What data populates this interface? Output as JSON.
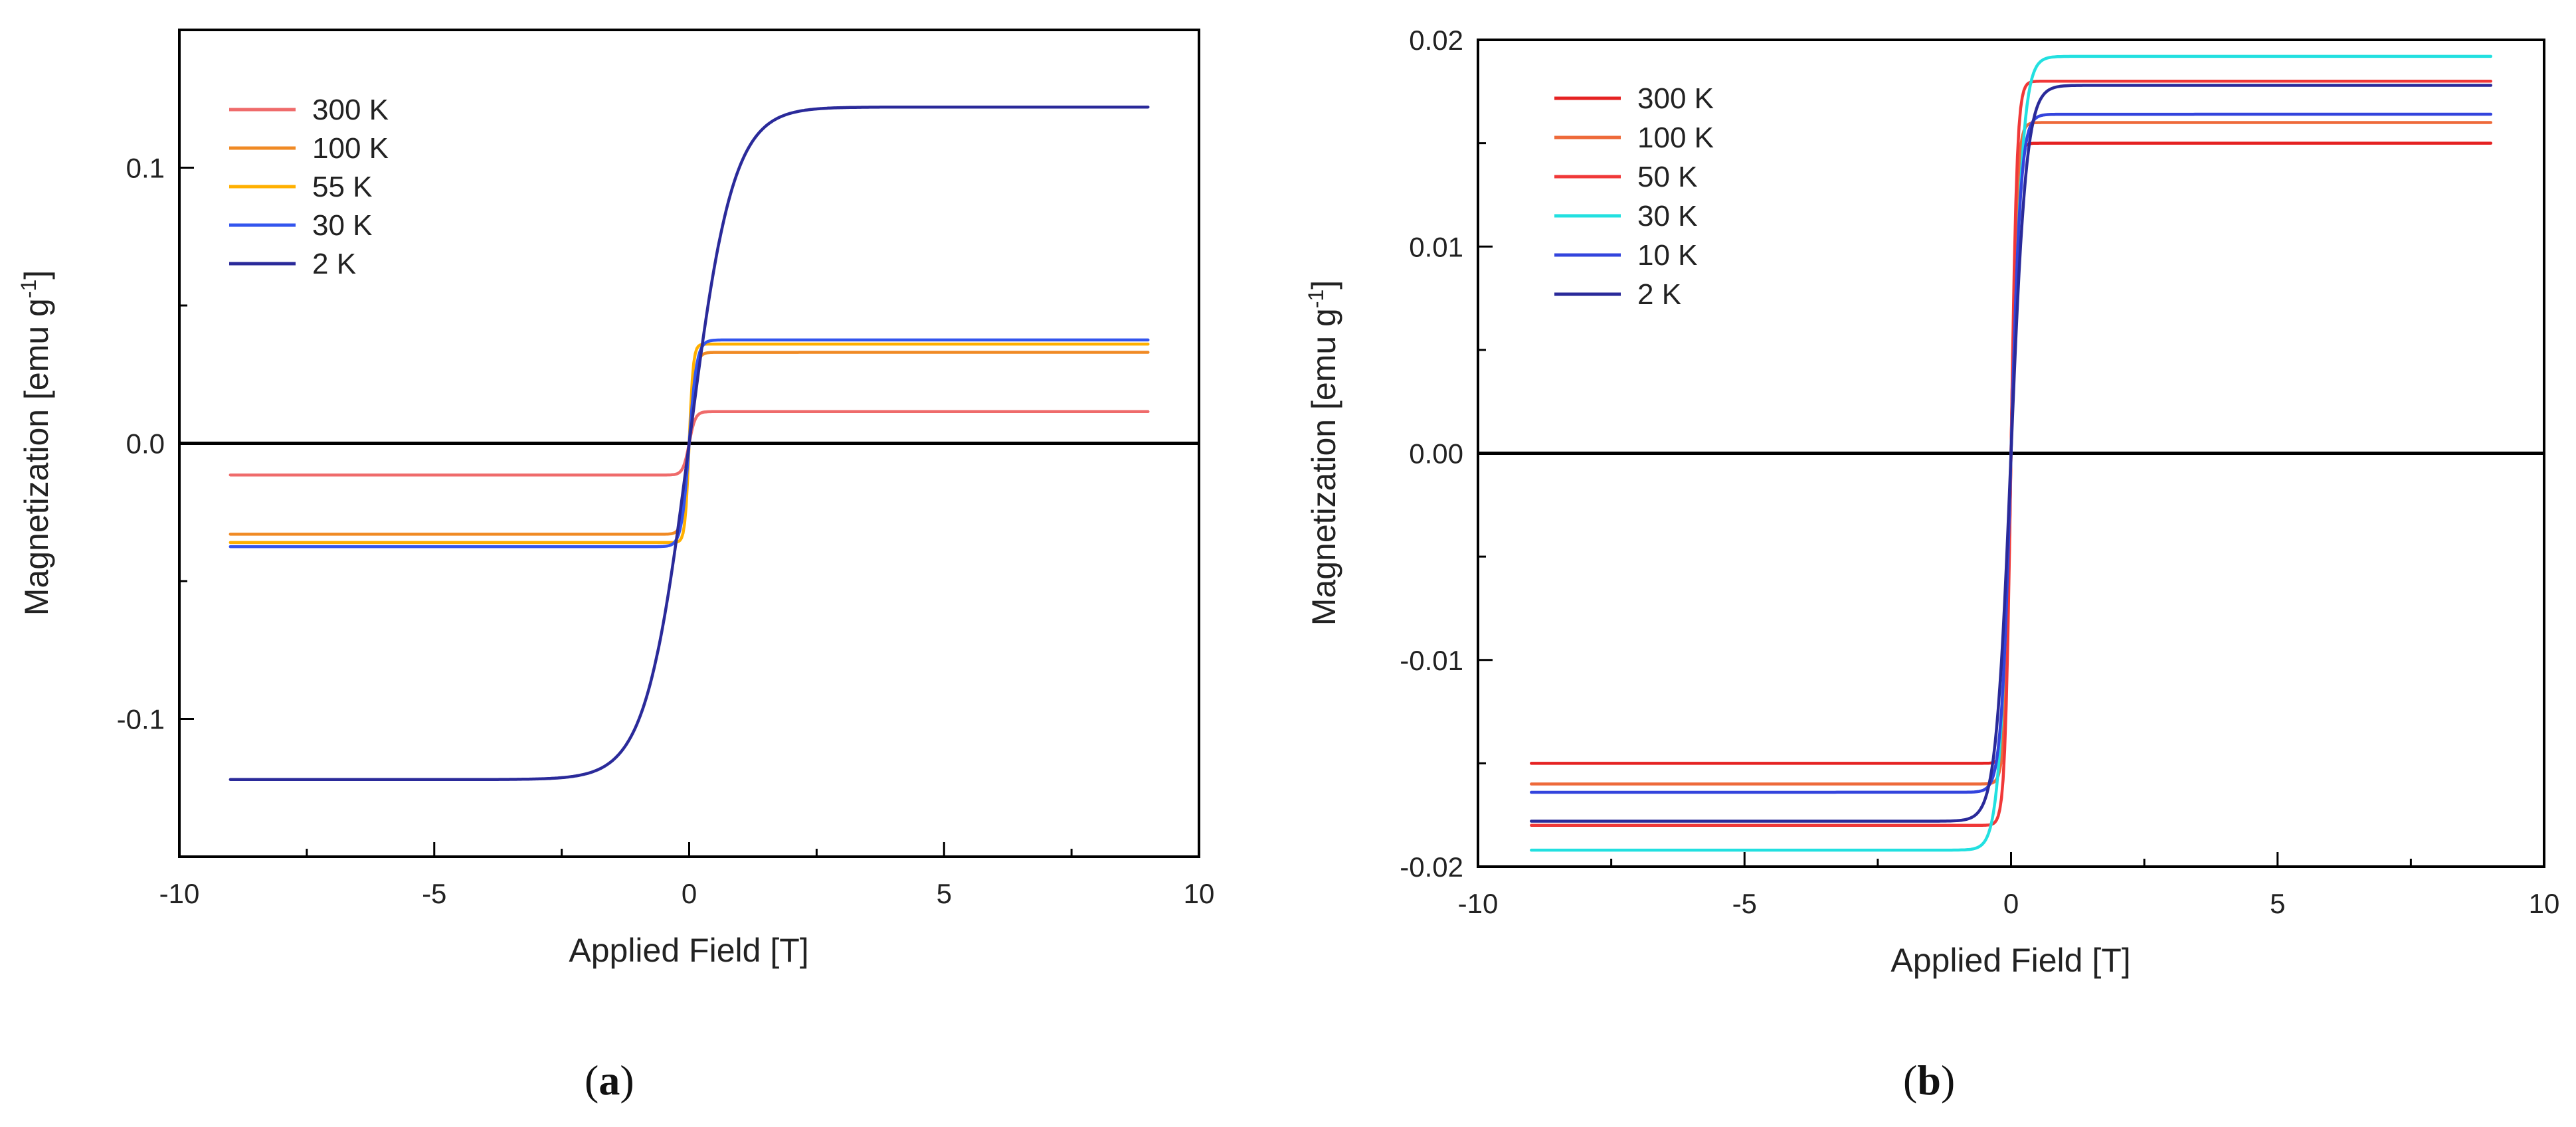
{
  "chart_data": [
    {
      "type": "line",
      "caption": "a",
      "xlabel": "Applied Field [T]",
      "ylabel": "Magnetization [emu g",
      "ylabel_sup": "-1",
      "ylabel_end": "]",
      "xlim": [
        -10,
        10
      ],
      "ylim": [
        -0.15,
        0.15
      ],
      "xticks": [
        -10,
        -5,
        0,
        5,
        10
      ],
      "xtick_labels": [
        "-10",
        "-5",
        "0",
        "5",
        "10"
      ],
      "yticks": [
        -0.1,
        0.0,
        0.1
      ],
      "ytick_labels": [
        "-0.1",
        "0.0",
        "0.1"
      ],
      "legend_position": "top-left",
      "series": [
        {
          "name": "300 K",
          "color": "#ef6b6b",
          "ms": 0.0115,
          "h0": 0.12
        },
        {
          "name": "100 K",
          "color": "#f08a24",
          "ms": 0.033,
          "h0": 0.12
        },
        {
          "name": "55 K",
          "color": "#ffb000",
          "ms": 0.036,
          "h0": 0.08
        },
        {
          "name": "30 K",
          "color": "#3355ee",
          "ms": 0.0375,
          "h0": 0.15
        },
        {
          "name": "2 K",
          "color": "#2a2a9a",
          "ms": 0.122,
          "h0": 0.85
        }
      ]
    },
    {
      "type": "line",
      "caption": "b",
      "xlabel": "Applied Field [T]",
      "ylabel": "Magnetization [emu g",
      "ylabel_sup": "-1",
      "ylabel_end": "]",
      "xlim": [
        -10,
        10
      ],
      "ylim": [
        -0.02,
        0.02
      ],
      "xticks": [
        -10,
        -5,
        0,
        5,
        10
      ],
      "xtick_labels": [
        "-10",
        "-5",
        "0",
        "5",
        "10"
      ],
      "yticks": [
        -0.02,
        -0.01,
        0.0,
        0.01,
        0.02
      ],
      "ytick_labels": [
        "-0.02",
        "-0.01",
        "0.00",
        "0.01",
        "0.02"
      ],
      "legend_position": "top-left",
      "series": [
        {
          "name": "300 K",
          "color": "#e52222",
          "ms": 0.015,
          "h0": 0.1
        },
        {
          "name": "100 K",
          "color": "#ee6a3a",
          "ms": 0.016,
          "h0": 0.11
        },
        {
          "name": "50 K",
          "color": "#f03838",
          "ms": 0.018,
          "h0": 0.11
        },
        {
          "name": "30 K",
          "color": "#22e0e0",
          "ms": 0.0192,
          "h0": 0.22
        },
        {
          "name": "10 K",
          "color": "#3344dd",
          "ms": 0.0164,
          "h0": 0.18
        },
        {
          "name": "2 K",
          "color": "#2a2a9a",
          "ms": 0.0178,
          "h0": 0.28
        }
      ]
    }
  ]
}
